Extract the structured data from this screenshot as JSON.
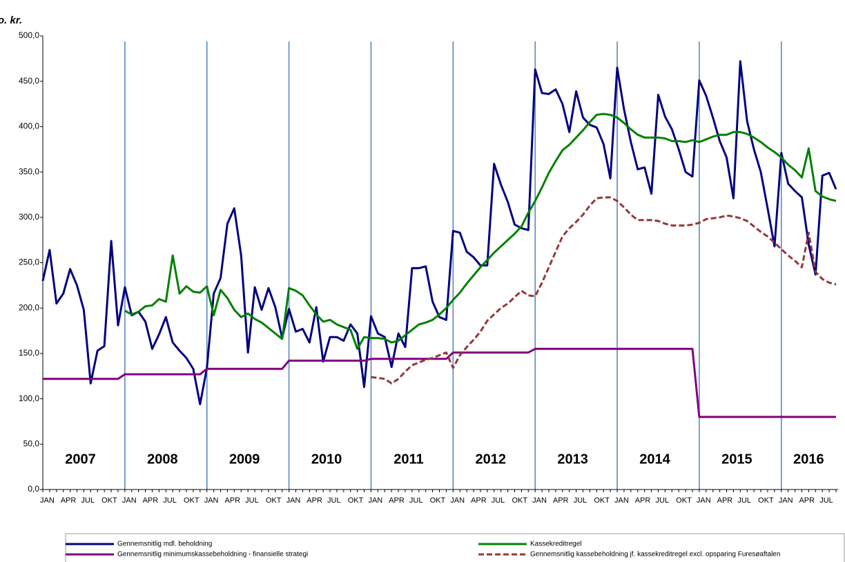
{
  "chart_data": {
    "type": "line",
    "y_label": "Mio. kr.",
    "categories": [
      "JAN",
      null,
      null,
      "APR",
      null,
      null,
      "JUL",
      null,
      null,
      "OKT",
      null,
      null,
      "JAN",
      null,
      null,
      "APR",
      null,
      null,
      "JUL",
      null,
      null,
      "OKT",
      null,
      null,
      "JAN",
      null,
      null,
      "APR",
      null,
      null,
      "JUL",
      null,
      null,
      "OKT",
      null,
      null,
      "JAN",
      null,
      null,
      "APR",
      null,
      null,
      "JUL",
      null,
      null,
      "OKT",
      null,
      null,
      "JAN",
      null,
      null,
      "APR",
      null,
      null,
      "JUL",
      null,
      null,
      "OKT",
      null,
      null,
      "JAN",
      null,
      null,
      "APR",
      null,
      null,
      "JUL",
      null,
      null,
      "OKT",
      null,
      null,
      "JAN",
      null,
      null,
      "APR",
      null,
      null,
      "JUL",
      null,
      null,
      "OKT",
      null,
      null,
      "JAN",
      null,
      null,
      "APR",
      null,
      null,
      "JUL",
      null,
      null,
      "OKT",
      null,
      null,
      "JAN",
      null,
      null,
      "APR",
      null,
      null,
      "JUL",
      null,
      null,
      "OKT",
      null,
      null,
      "JAN",
      null,
      null,
      "APR",
      null,
      null,
      "JUL",
      null,
      null
    ],
    "annotations": [
      "2007",
      "2008",
      "2009",
      "2010",
      "2011",
      "2012",
      "2013",
      "2014",
      "2015",
      "2016"
    ],
    "series": [
      {
        "name": "Gennemsnitlig mdl. beholdning",
        "color": "#000080",
        "values": [
          230,
          264,
          205,
          216,
          243,
          225,
          198,
          117,
          153,
          158,
          274,
          181,
          223,
          192,
          196,
          185,
          155,
          171,
          190,
          162,
          153,
          145,
          133,
          94,
          134,
          216,
          233,
          293,
          310,
          258,
          151,
          223,
          198,
          222,
          201,
          167,
          199,
          174,
          177,
          162,
          201,
          141,
          168,
          168,
          164,
          182,
          172,
          113,
          191,
          172,
          168,
          135,
          172,
          157,
          244,
          244,
          246,
          207,
          190,
          187,
          285,
          283,
          262,
          256,
          247,
          247,
          359,
          336,
          317,
          292,
          288,
          286,
          463,
          437,
          436,
          441,
          425,
          394,
          439,
          410,
          402,
          399,
          381,
          343,
          465,
          419,
          383,
          353,
          355,
          326,
          435,
          411,
          397,
          375,
          350,
          345,
          451,
          434,
          410,
          384,
          366,
          321,
          472,
          406,
          375,
          350,
          310,
          268,
          371,
          337,
          329,
          322,
          270,
          237,
          346,
          349,
          331
        ]
      },
      {
        "name": "Kassekreditregel",
        "color": "#008000",
        "values": [
          null,
          null,
          null,
          null,
          null,
          null,
          null,
          null,
          null,
          null,
          null,
          null,
          197,
          193,
          196,
          202,
          203,
          210,
          207,
          258,
          216,
          224,
          218,
          217,
          224,
          192,
          220,
          211,
          198,
          190,
          194,
          188,
          184,
          178,
          172,
          166,
          222,
          219,
          214,
          203,
          193,
          185,
          187,
          182,
          179,
          176,
          155,
          168,
          167,
          167,
          166,
          162,
          164,
          170,
          176,
          182,
          184,
          187,
          193,
          200,
          209,
          217,
          227,
          236,
          245,
          253,
          261,
          268,
          275,
          282,
          290,
          305,
          318,
          333,
          349,
          362,
          374,
          380,
          388,
          396,
          405,
          413,
          414,
          413,
          410,
          404,
          397,
          391,
          388,
          388,
          388,
          387,
          384,
          384,
          383,
          385,
          383,
          386,
          389,
          391,
          391,
          394,
          394,
          392,
          388,
          383,
          377,
          372,
          366,
          358,
          352,
          344,
          376,
          329,
          323,
          320,
          318
        ]
      },
      {
        "name": "Gennemsnitlig minimumskassebeholdning - finansielle strategi",
        "color": "#800080",
        "values": [
          122,
          122,
          122,
          122,
          122,
          122,
          122,
          122,
          122,
          122,
          122,
          122,
          127,
          127,
          127,
          127,
          127,
          127,
          127,
          127,
          127,
          127,
          127,
          127,
          133,
          133,
          133,
          133,
          133,
          133,
          133,
          133,
          133,
          133,
          133,
          133,
          142,
          142,
          142,
          142,
          142,
          142,
          142,
          142,
          142,
          142,
          142,
          142,
          144,
          144,
          144,
          144,
          144,
          144,
          144,
          144,
          144,
          144,
          144,
          144,
          151,
          151,
          151,
          151,
          151,
          151,
          151,
          151,
          151,
          151,
          151,
          151,
          155,
          155,
          155,
          155,
          155,
          155,
          155,
          155,
          155,
          155,
          155,
          155,
          155,
          155,
          155,
          155,
          155,
          155,
          155,
          155,
          155,
          155,
          155,
          155,
          80,
          80,
          80,
          80,
          80,
          80,
          80,
          80,
          80,
          80,
          80,
          80,
          80,
          80,
          80,
          80,
          80,
          80,
          80,
          80,
          80
        ]
      },
      {
        "name": "Gennemsnitlig kassebeholdning jf. kassekreditregel excl. opsparing Furesøaftalen",
        "color": "#953735",
        "dashed": true,
        "values": [
          null,
          null,
          null,
          null,
          null,
          null,
          null,
          null,
          null,
          null,
          null,
          null,
          null,
          null,
          null,
          null,
          null,
          null,
          null,
          null,
          null,
          null,
          null,
          null,
          null,
          null,
          null,
          null,
          null,
          null,
          null,
          null,
          null,
          null,
          null,
          null,
          null,
          null,
          null,
          null,
          null,
          null,
          null,
          null,
          null,
          null,
          null,
          null,
          124,
          123,
          122,
          117,
          122,
          130,
          137,
          140,
          143,
          145,
          148,
          151,
          134,
          148,
          157,
          165,
          174,
          186,
          193,
          200,
          205,
          212,
          219,
          214,
          213,
          228,
          245,
          262,
          279,
          288,
          295,
          303,
          313,
          321,
          322,
          322,
          318,
          311,
          303,
          297,
          297,
          297,
          296,
          293,
          291,
          291,
          291,
          292,
          294,
          298,
          299,
          300,
          302,
          301,
          299,
          296,
          290,
          284,
          279,
          272,
          265,
          258,
          252,
          245,
          283,
          240,
          232,
          228,
          226
        ]
      }
    ],
    "ylim": [
      0,
      500
    ],
    "yticks": [
      {
        "value": 0,
        "label": "0,0"
      },
      {
        "value": 50,
        "label": "50,0"
      },
      {
        "value": 100,
        "label": "100,0"
      },
      {
        "value": 150,
        "label": "150,0"
      },
      {
        "value": 200,
        "label": "200,0"
      },
      {
        "value": 250,
        "label": "250,0"
      },
      {
        "value": 300,
        "label": "300,0"
      },
      {
        "value": 350,
        "label": "350,0"
      },
      {
        "value": 400,
        "label": "400,0"
      },
      {
        "value": 450,
        "label": "450,0"
      },
      {
        "value": 500,
        "label": "500,0"
      }
    ]
  }
}
